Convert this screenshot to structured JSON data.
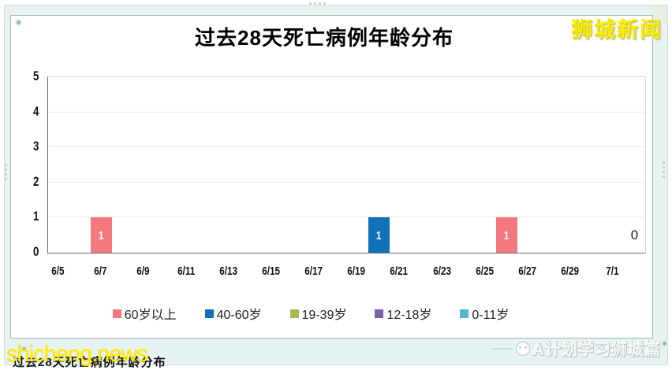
{
  "watermarks": {
    "site_logo_top_right": "狮城新闻",
    "site_url_bottom_left": "shicheng.news",
    "caption_behind_url": "过去28天死亡病例年龄分布",
    "channel_bottom_right": "A计划学习狮城篇"
  },
  "chart_data": {
    "type": "bar",
    "title": "过去28天死亡病例年龄分布",
    "x_days_total": 28,
    "x_tick_labels": [
      "6/5",
      "6/7",
      "6/9",
      "6/11",
      "6/13",
      "6/15",
      "6/17",
      "6/19",
      "6/21",
      "6/23",
      "6/25",
      "6/27",
      "6/29",
      "7/1"
    ],
    "y_ticks": [
      0,
      1,
      2,
      3,
      4,
      5
    ],
    "ylim": [
      0,
      5
    ],
    "grid": true,
    "legend_position": "bottom",
    "legend": [
      {
        "label": "60岁以上",
        "color": "#f4797f"
      },
      {
        "label": "40-60岁",
        "color": "#1172b9"
      },
      {
        "label": "19-39岁",
        "color": "#9fb957"
      },
      {
        "label": "12-18岁",
        "color": "#7a5fa8"
      },
      {
        "label": "0-11岁",
        "color": "#55b6cf"
      }
    ],
    "bars": [
      {
        "date": "6/7",
        "day_index": 2,
        "value": 1,
        "series": "60岁以上",
        "color": "#f4797f"
      },
      {
        "date": "6/20",
        "day_index": 15,
        "value": 1,
        "series": "40-60岁",
        "color": "#1172b9"
      },
      {
        "date": "6/26",
        "day_index": 21,
        "value": 1,
        "series": "60岁以上",
        "color": "#f4797f"
      },
      {
        "date": "7/2",
        "day_index": 27,
        "value": 0,
        "series": "",
        "color": ""
      }
    ]
  }
}
